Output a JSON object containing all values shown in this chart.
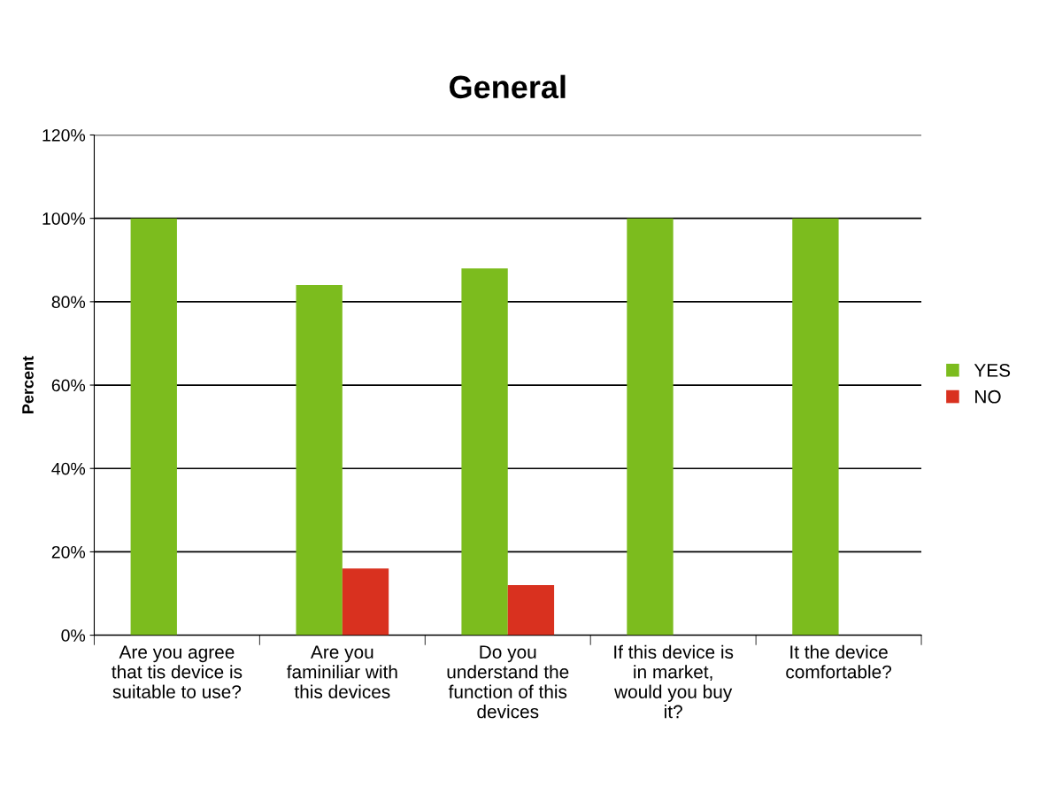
{
  "chart_data": {
    "type": "bar",
    "title": "General",
    "ylabel": "Percent",
    "categories": [
      "Are you agree\nthat tis device is\nsuitable to use?",
      "Are you\nfaminiliar with\nthis devices",
      "Do you\nunderstand the\nfunction of this\ndevices",
      "If this device is\nin market,\nwould you buy\nit?",
      "It the device\ncomfortable?"
    ],
    "series": [
      {
        "name": "YES",
        "color": "#7cbc1e",
        "values": [
          100,
          84,
          88,
          100,
          100
        ]
      },
      {
        "name": "NO",
        "color": "#d9311f",
        "values": [
          0,
          16,
          12,
          0,
          0
        ]
      }
    ],
    "ylim": [
      0,
      120
    ],
    "yticks": [
      {
        "value": 0,
        "label": "0%"
      },
      {
        "value": 20,
        "label": "20%"
      },
      {
        "value": 40,
        "label": "40%"
      },
      {
        "value": 60,
        "label": "60%"
      },
      {
        "value": 80,
        "label": "80%"
      },
      {
        "value": 100,
        "label": "100%"
      },
      {
        "value": 120,
        "label": "120%"
      }
    ],
    "grid": "y",
    "legend": "right"
  }
}
